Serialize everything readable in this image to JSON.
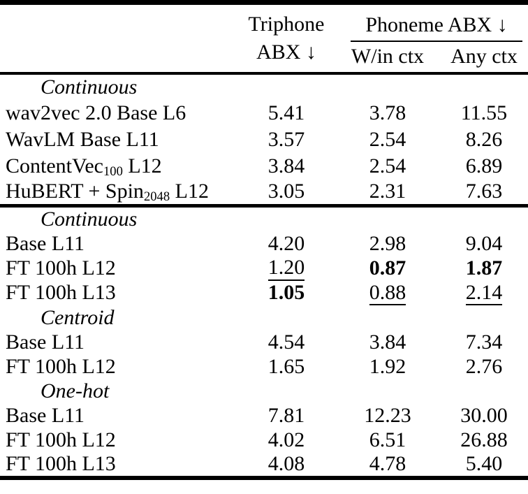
{
  "table": {
    "header": {
      "corner": "",
      "col_triphone": {
        "line1": "Triphone",
        "line2": "ABX ↓"
      },
      "group_phoneme": "Phoneme ABX ↓",
      "sub_within": "W/in ctx",
      "sub_any": "Any ctx"
    },
    "sections": [
      {
        "rows": [
          {
            "kind": "section",
            "label": "Continuous"
          },
          {
            "kind": "data",
            "label": [
              {
                "t": "wav2vec 2.0 Base L6"
              }
            ],
            "cells": [
              {
                "v": "5.41"
              },
              {
                "v": "3.78"
              },
              {
                "v": "11.55"
              }
            ]
          },
          {
            "kind": "data",
            "label": [
              {
                "t": "WavLM Base L11"
              }
            ],
            "cells": [
              {
                "v": "3.57"
              },
              {
                "v": "2.54"
              },
              {
                "v": "8.26"
              }
            ]
          },
          {
            "kind": "data",
            "label": [
              {
                "t": "ContentVec"
              },
              {
                "t": "100",
                "sub": true
              },
              {
                "t": " L12"
              }
            ],
            "cells": [
              {
                "v": "3.84"
              },
              {
                "v": "2.54"
              },
              {
                "v": "6.89"
              }
            ]
          },
          {
            "kind": "data",
            "label": [
              {
                "t": "HuBERT + Spin"
              },
              {
                "t": "2048",
                "sub": true
              },
              {
                "t": " L12"
              }
            ],
            "cells": [
              {
                "v": "3.05"
              },
              {
                "v": "2.31"
              },
              {
                "v": "7.63"
              }
            ]
          }
        ]
      },
      {
        "rows": [
          {
            "kind": "section",
            "label": "Continuous"
          },
          {
            "kind": "data",
            "label": [
              {
                "t": "Base L11"
              }
            ],
            "cells": [
              {
                "v": "4.20"
              },
              {
                "v": "2.98"
              },
              {
                "v": "9.04"
              }
            ]
          },
          {
            "kind": "data",
            "label": [
              {
                "t": "FT 100h L12"
              }
            ],
            "cells": [
              {
                "v": "1.20",
                "s": "underline"
              },
              {
                "v": "0.87",
                "s": "bold"
              },
              {
                "v": "1.87",
                "s": "bold"
              }
            ]
          },
          {
            "kind": "data",
            "label": [
              {
                "t": "FT 100h L13"
              }
            ],
            "cells": [
              {
                "v": "1.05",
                "s": "bold"
              },
              {
                "v": "0.88",
                "s": "underline"
              },
              {
                "v": "2.14",
                "s": "underline"
              }
            ]
          },
          {
            "kind": "section",
            "label": "Centroid"
          },
          {
            "kind": "data",
            "label": [
              {
                "t": "Base L11"
              }
            ],
            "cells": [
              {
                "v": "4.54"
              },
              {
                "v": "3.84"
              },
              {
                "v": "7.34"
              }
            ]
          },
          {
            "kind": "data",
            "label": [
              {
                "t": "FT 100h L12"
              }
            ],
            "cells": [
              {
                "v": "1.65"
              },
              {
                "v": "1.92"
              },
              {
                "v": "2.76"
              }
            ]
          },
          {
            "kind": "section",
            "label": "One-hot"
          },
          {
            "kind": "data",
            "label": [
              {
                "t": "Base L11"
              }
            ],
            "cells": [
              {
                "v": "7.81"
              },
              {
                "v": "12.23"
              },
              {
                "v": "30.00"
              }
            ]
          },
          {
            "kind": "data",
            "label": [
              {
                "t": "FT 100h L12"
              }
            ],
            "cells": [
              {
                "v": "4.02"
              },
              {
                "v": "6.51"
              },
              {
                "v": "26.88"
              }
            ]
          },
          {
            "kind": "data",
            "label": [
              {
                "t": "FT 100h L13"
              }
            ],
            "cells": [
              {
                "v": "4.08"
              },
              {
                "v": "4.78"
              },
              {
                "v": "5.40"
              }
            ]
          }
        ]
      }
    ]
  }
}
